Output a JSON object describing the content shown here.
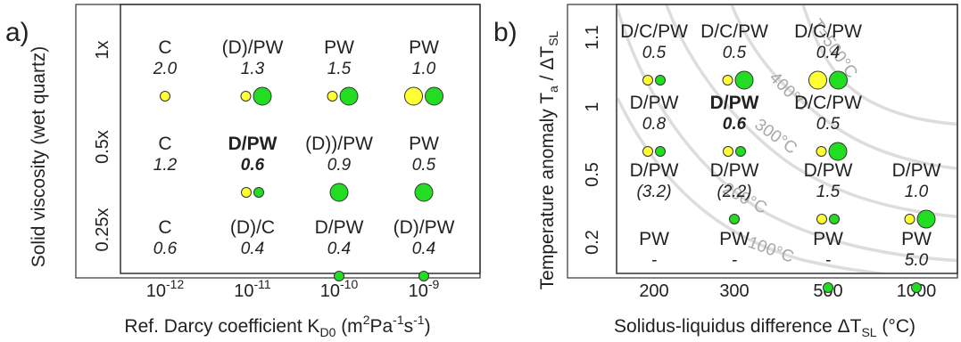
{
  "chart_data": [
    {
      "type": "table",
      "panel_label": "a)",
      "xlabel": "Ref. Darcy coefficient K",
      "xlabel_sub": "D0",
      "xlabel_units_pre": " (m",
      "xlabel_units_sup1": "2",
      "xlabel_units_mid1": "Pa",
      "xlabel_units_sup2": "-1",
      "xlabel_units_mid2": "s",
      "xlabel_units_sup3": "-1",
      "xlabel_units_post": ")",
      "ylabel": "Solid viscosity (wet quartz)",
      "x_ticks": [
        {
          "base": "10",
          "exp": "-12"
        },
        {
          "base": "10",
          "exp": "-11"
        },
        {
          "base": "10",
          "exp": "-10"
        },
        {
          "base": "10",
          "exp": "-9"
        }
      ],
      "y_ticks": [
        "1x",
        "0.5x",
        "0.25x"
      ],
      "rows": [
        [
          {
            "label": "C",
            "value": "2.0",
            "bold": false,
            "yellow": "s",
            "green": ""
          },
          {
            "label": "(D)/PW",
            "value": "1.3",
            "bold": false,
            "yellow": "s",
            "green": "l"
          },
          {
            "label": "PW",
            "value": "1.5",
            "bold": false,
            "yellow": "s",
            "green": "l"
          },
          {
            "label": "PW",
            "value": "1.0",
            "bold": false,
            "yellow": "l",
            "green": "l"
          }
        ],
        [
          {
            "label": "C",
            "value": "1.2",
            "bold": false,
            "yellow": "",
            "green": ""
          },
          {
            "label": "D/PW",
            "value": "0.6",
            "bold": true,
            "yellow": "s",
            "green": "s"
          },
          {
            "label": "(D))/PW",
            "value": "0.9",
            "bold": false,
            "yellow": "",
            "green": "l"
          },
          {
            "label": "PW",
            "value": "0.5",
            "bold": false,
            "yellow": "",
            "green": "l"
          }
        ],
        [
          {
            "label": "C",
            "value": "0.6",
            "bold": false,
            "yellow": "",
            "green": ""
          },
          {
            "label": "(D)/C",
            "value": "0.4",
            "bold": false,
            "yellow": "",
            "green": ""
          },
          {
            "label": "D/PW",
            "value": "0.4",
            "bold": false,
            "yellow": "",
            "green": "s"
          },
          {
            "label": "(D)/PW",
            "value": "0.4",
            "bold": false,
            "yellow": "",
            "green": "s"
          }
        ]
      ]
    },
    {
      "type": "table",
      "panel_label": "b)",
      "xlabel": "Solidus-liquidus difference ΔT",
      "xlabel_sub": "SL",
      "xlabel_post": " (°C)",
      "ylabel": "Temperature anomaly T",
      "ylabel_sub1": "a",
      "ylabel_mid": " / ΔT",
      "ylabel_sub2": "SL",
      "x_ticks": [
        "200",
        "300",
        "500",
        "1000"
      ],
      "y_ticks": [
        "1.1",
        "1",
        "0.5",
        "0.2"
      ],
      "isotherms": [
        "T=500°C",
        "400°C",
        "300°C",
        "200°C",
        "100°C"
      ],
      "rows": [
        [
          {
            "label": "D/C/PW",
            "value": "0.5",
            "bold": false,
            "yellow": "s",
            "green": "s"
          },
          {
            "label": "D/C/PW",
            "value": "0.5",
            "bold": false,
            "yellow": "s",
            "green": "l"
          },
          {
            "label": "D/C/PW",
            "value": "0.4",
            "bold": false,
            "yellow": "l",
            "green": "l"
          },
          null
        ],
        [
          {
            "label": "D/PW",
            "value": "0.8",
            "bold": false,
            "yellow": "s",
            "green": "s"
          },
          {
            "label": "D/PW",
            "value": "0.6",
            "bold": true,
            "yellow": "s",
            "green": "s"
          },
          {
            "label": "D/C/PW",
            "value": "0.5",
            "bold": false,
            "yellow": "s",
            "green": "l"
          },
          null
        ],
        [
          {
            "label": "D/PW",
            "value": "(3.2)",
            "bold": false,
            "yellow": "",
            "green": ""
          },
          {
            "label": "D/PW",
            "value": "(2.2)",
            "bold": false,
            "yellow": "",
            "green": "s"
          },
          {
            "label": "D/PW",
            "value": "1.5",
            "bold": false,
            "yellow": "s",
            "green": "s"
          },
          {
            "label": "D/PW",
            "value": "1.0",
            "bold": false,
            "yellow": "s",
            "green": "l"
          }
        ],
        [
          {
            "label": "PW",
            "value": "-",
            "bold": false,
            "yellow": "",
            "green": ""
          },
          {
            "label": "PW",
            "value": "-",
            "bold": false,
            "yellow": "",
            "green": ""
          },
          {
            "label": "PW",
            "value": "-",
            "bold": false,
            "yellow": "",
            "green": "s"
          },
          {
            "label": "PW",
            "value": "5.0",
            "bold": false,
            "yellow": "",
            "green": "s"
          }
        ]
      ]
    }
  ],
  "colors": {
    "yellow": "#ffff33",
    "green": "#22dd22",
    "marker_stroke": "#333333",
    "isotherm": "#dddddd",
    "isotherm_text": "#a8a8a8"
  }
}
